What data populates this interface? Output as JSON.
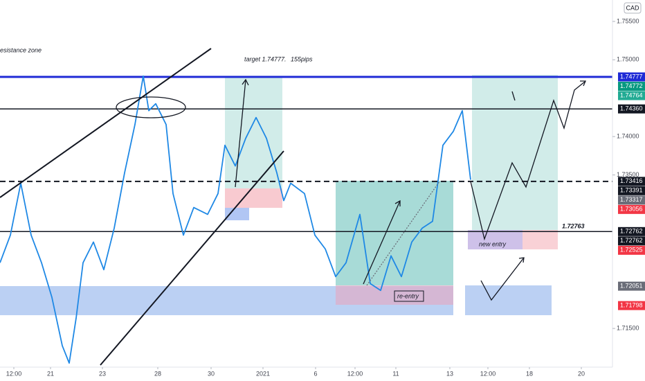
{
  "chart_data": {
    "type": "line",
    "currency": "CAD",
    "xlim": [
      0,
      885
    ],
    "ylim": [
      1.70996,
      1.75779
    ],
    "xticks": [
      {
        "value": 20,
        "label": "12:00"
      },
      {
        "value": 73,
        "label": "21"
      },
      {
        "value": 148,
        "label": "23"
      },
      {
        "value": 228,
        "label": "28"
      },
      {
        "value": 305,
        "label": "30"
      },
      {
        "value": 380,
        "label": "2021"
      },
      {
        "value": 456,
        "label": "6"
      },
      {
        "value": 513,
        "label": "12:00"
      },
      {
        "value": 572,
        "label": "11"
      },
      {
        "value": 650,
        "label": "13"
      },
      {
        "value": 705,
        "label": "12:00"
      },
      {
        "value": 765,
        "label": "18"
      },
      {
        "value": 840,
        "label": "20"
      }
    ],
    "yticks": [
      {
        "value": 1.755,
        "label": "1.75500"
      },
      {
        "value": 1.75,
        "label": "1.75000"
      },
      {
        "value": 1.74,
        "label": "1.74000"
      },
      {
        "value": 1.735,
        "label": "1.73500"
      },
      {
        "value": 1.715,
        "label": "1.71500"
      }
    ],
    "x": [
      0,
      15,
      30,
      45,
      60,
      75,
      90,
      100,
      110,
      120,
      135,
      150,
      165,
      180,
      195,
      207,
      215,
      225,
      240,
      250,
      265,
      280,
      300,
      315,
      325,
      340,
      355,
      370,
      385,
      400,
      410,
      420,
      440,
      455,
      470,
      485,
      500,
      520,
      535,
      550,
      565,
      580,
      595,
      610,
      625,
      640,
      655,
      668,
      680
    ],
    "series": [
      {
        "color": "#1e88e5",
        "values": [
          1.72356,
          1.72716,
          1.73392,
          1.72716,
          1.72356,
          1.71905,
          1.71275,
          1.71049,
          1.71635,
          1.72356,
          1.72626,
          1.72266,
          1.72806,
          1.73527,
          1.74157,
          1.74788,
          1.74338,
          1.74428,
          1.74157,
          1.73257,
          1.72716,
          1.73076,
          1.72986,
          1.73257,
          1.73887,
          1.73617,
          1.73977,
          1.74248,
          1.73977,
          1.73527,
          1.73166,
          1.73392,
          1.73257,
          1.72716,
          1.72536,
          1.72175,
          1.72356,
          1.72986,
          1.72085,
          1.71995,
          1.72446,
          1.72175,
          1.72626,
          1.72806,
          1.72896,
          1.73887,
          1.74067,
          1.74338,
          1.73437
        ]
      }
    ],
    "levels": [
      {
        "value": 1.74777,
        "color": "#1f2bd6",
        "width": 3,
        "dashed": false
      },
      {
        "value": 1.7436,
        "color": "#131722",
        "width": 1.5,
        "dashed": false
      },
      {
        "value": 1.73416,
        "color": "#131722",
        "width": 2,
        "dashed": true
      },
      {
        "value": 1.72763,
        "color": "#131722",
        "width": 1.5,
        "dashed": false
      }
    ],
    "price_labels": [
      {
        "value": 1.74777,
        "label": "1.74777",
        "color": "#1f2bd6"
      },
      {
        "value": 1.74772,
        "label": "1.74772",
        "color": "#089981"
      },
      {
        "value": 1.74764,
        "label": "1.74764",
        "color": "#22ab94"
      },
      {
        "value": 1.7436,
        "label": "1.74360",
        "color": "#131722"
      },
      {
        "value": 1.73416,
        "label": "1.73416",
        "color": "#131722"
      },
      {
        "value": 1.73391,
        "label": "1.73391",
        "color": "#131722"
      },
      {
        "value": 1.73317,
        "label": "1.73317",
        "color": "#6a6d78"
      },
      {
        "value": 1.73056,
        "label": "1.73056",
        "color": "#f23645"
      },
      {
        "value": 1.72762,
        "label": "1.72762",
        "color": "#131722"
      },
      {
        "value": 1.72762,
        "label": "1.72762",
        "color": "#131722"
      },
      {
        "value": 1.72525,
        "label": "1.72525",
        "color": "#f23645"
      },
      {
        "value": 1.72051,
        "label": "1.72051",
        "color": "#6a6d78"
      },
      {
        "value": 1.71798,
        "label": "1.71798",
        "color": "#f23645"
      }
    ],
    "annotations": [
      "esistance zone",
      "target 1.74777.",
      "155pips",
      "1.72763",
      "new entry",
      "re-entry"
    ]
  }
}
